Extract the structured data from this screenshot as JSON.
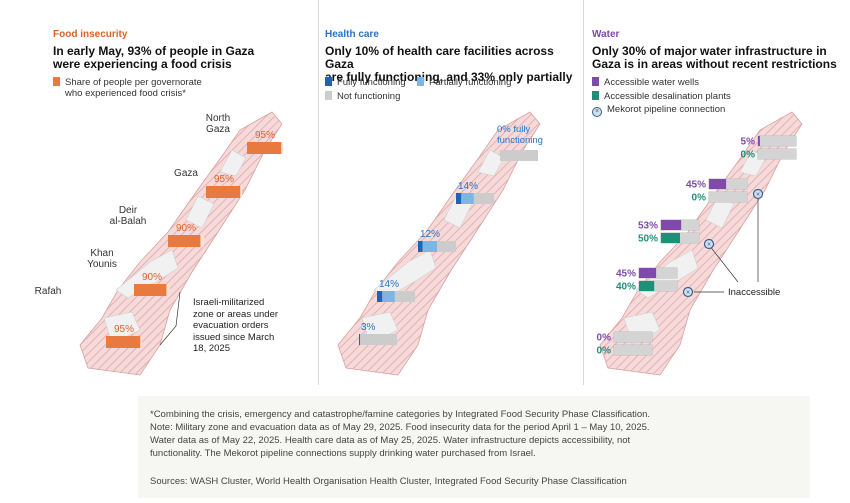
{
  "colors": {
    "food": "#e8793f",
    "food_tag": "#d9632b",
    "health_full": "#1e64b4",
    "health_partial": "#7db5e3",
    "not_functioning": "#cccccc",
    "health_tag": "#2a73c2",
    "wells": "#7f4aa8",
    "desal": "#1f8f78",
    "water_tag": "#7f4aa8",
    "map_fill": "#f4d6d6",
    "map_hatch": "#e2a8a8",
    "map_unhatched": "#f0f0f0"
  },
  "food_panel": {
    "tag": "Food insecurity",
    "title_line1": "In early May, 93% of people in Gaza",
    "title_line2": "were experiencing a food crisis",
    "legend_line1": "Share of people per governorate",
    "legend_line2": "who experienced food crisis*",
    "militarized_note": [
      "Israeli-militarized",
      "zone or areas under",
      "evacuation orders",
      "issued since March",
      "18, 2025"
    ]
  },
  "health_panel": {
    "tag": "Health care",
    "title_line1": "Only 10% of health care facilities across Gaza",
    "title_line2": "are fully functioning, and 33% only partially",
    "legend_full": "Fully functioning",
    "legend_partial": "Partially functioning",
    "legend_not": "Not functioning",
    "top_label_line1": "0% fully",
    "top_label_line2": "functioning"
  },
  "water_panel": {
    "tag": "Water",
    "title_line1": "Only 30% of major water infrastructure in",
    "title_line2": "Gaza is in areas without recent restrictions",
    "legend_wells": "Accessible water wells",
    "legend_desal": "Accessible desalination plants",
    "legend_pipeline": "Mekorot pipeline connection",
    "inaccessible_label": "Inaccessible",
    "pipeline_icon": "x-circle-icon"
  },
  "chart_data": [
    {
      "type": "bar",
      "title": "In early May, 93% of people in Gaza were experiencing a food crisis",
      "categories": [
        "North Gaza",
        "Gaza",
        "Deir al-Balah",
        "Khan Younis",
        "Rafah"
      ],
      "values": [
        95,
        95,
        90,
        90,
        95
      ],
      "labels": [
        "95%",
        "95%",
        "90%",
        "90%",
        "95%"
      ],
      "series": [
        {
          "name": "Share of people per governorate who experienced food crisis*",
          "values": [
            95,
            95,
            90,
            90,
            95
          ]
        }
      ],
      "ylim": [
        0,
        100
      ]
    },
    {
      "type": "bar",
      "stacked": true,
      "title": "Only 10% of health care facilities across Gaza are fully functioning, and 33% only partially",
      "categories": [
        "North Gaza",
        "Gaza",
        "Deir al-Balah",
        "Khan Younis",
        "Rafah"
      ],
      "labels": [
        "0% fully functioning",
        "14%",
        "12%",
        "14%",
        "3%"
      ],
      "series": [
        {
          "name": "Fully functioning",
          "values": [
            0,
            14,
            12,
            14,
            3
          ]
        },
        {
          "name": "Partially functioning",
          "values": [
            0,
            33,
            38,
            33,
            0
          ]
        },
        {
          "name": "Not functioning",
          "values": [
            100,
            53,
            50,
            53,
            97
          ]
        }
      ],
      "ylim": [
        0,
        100
      ]
    },
    {
      "type": "bar",
      "title": "Only 30% of major water infrastructure in Gaza is in areas without recent restrictions",
      "categories": [
        "North Gaza",
        "Gaza",
        "Deir al-Balah",
        "Khan Younis",
        "Rafah"
      ],
      "series": [
        {
          "name": "Accessible water wells",
          "values": [
            5,
            45,
            53,
            45,
            0
          ],
          "labels": [
            "5%",
            "45%",
            "53%",
            "45%",
            "0%"
          ]
        },
        {
          "name": "Accessible desalination plants",
          "values": [
            0,
            0,
            50,
            40,
            0
          ],
          "labels": [
            "0%",
            "0%",
            "50%",
            "40%",
            "0%"
          ]
        }
      ],
      "ylim": [
        0,
        100
      ]
    }
  ],
  "footer": {
    "note_line1": "*Combining the crisis, emergency and catastrophe/famine categories by Integrated Food Security Phase Classification.",
    "note_line2": "Note: Military zone and evacuation data as of May 29, 2025. Food insecurity data for the period April 1 – May 10, 2025.",
    "note_line3": "Water data as of May 22, 2025. Health care data as of May 25, 2025. Water infrastructure depicts accessibility, not",
    "note_line4": "functionality. The Mekorot pipeline connections supply drinking water purchased from Israel.",
    "sources": "Sources: WASH Cluster, World Health Organisation Health Cluster, Integrated Food Security Phase Classification"
  }
}
